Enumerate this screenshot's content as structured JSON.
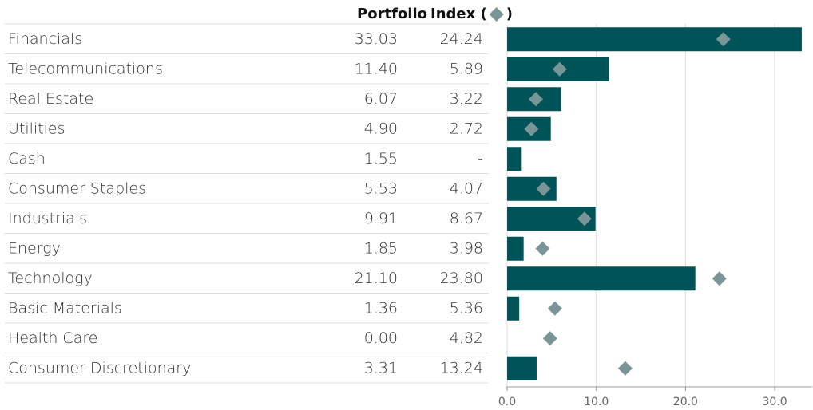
{
  "chart_data": {
    "type": "bar",
    "orientation": "horizontal",
    "categories": [
      "Financials",
      "Telecommunications",
      "Real Estate",
      "Utilities",
      "Cash",
      "Consumer Staples",
      "Industrials",
      "Energy",
      "Technology",
      "Basic Materials",
      "Health Care",
      "Consumer Discretionary"
    ],
    "series": [
      {
        "name": "Portfolio",
        "color": "#005356",
        "marker": "bar",
        "values": [
          33.03,
          11.4,
          6.07,
          4.9,
          1.55,
          5.53,
          9.91,
          1.85,
          21.1,
          1.36,
          0.0,
          3.31
        ],
        "value_labels": [
          "33.03",
          "11.40",
          "6.07",
          "4.90",
          "1.55",
          "5.53",
          "9.91",
          "1.85",
          "21.10",
          "1.36",
          "0.00",
          "3.31"
        ]
      },
      {
        "name": "Index (",
        "color": "#7a9598",
        "marker": "diamond",
        "values": [
          24.24,
          5.89,
          3.22,
          2.72,
          null,
          4.07,
          8.67,
          3.98,
          23.8,
          5.36,
          4.82,
          13.24
        ],
        "value_labels": [
          "24.24",
          "5.89",
          "3.22",
          "2.72",
          "-",
          "4.07",
          "8.67",
          "3.98",
          "23.80",
          "5.36",
          "4.82",
          "13.24"
        ]
      }
    ],
    "legend_close": ")",
    "xlim": [
      0,
      34.2
    ],
    "xticks": [
      {
        "value": 0,
        "label": "0.0"
      },
      {
        "value": 10,
        "label": "10.0"
      },
      {
        "value": 20,
        "label": "20.0"
      },
      {
        "value": 30,
        "label": "30.0"
      }
    ],
    "grid": true
  }
}
